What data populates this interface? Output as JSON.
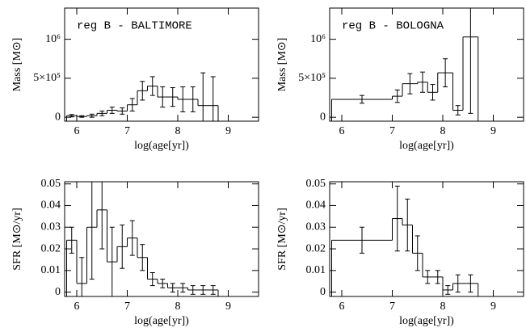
{
  "chart_data": [
    {
      "type": "histogram",
      "title": "reg B - BALTIMORE",
      "xlabel": "log(age[yr])",
      "ylabel": "Mass [M⊙]",
      "bins": [
        5.8,
        6.0,
        6.2,
        6.4,
        6.6,
        6.8,
        7.0,
        7.2,
        7.4,
        7.6,
        7.8,
        8.0,
        8.2,
        8.4,
        8.6,
        8.8
      ],
      "values": [
        20000,
        10000,
        20000,
        50000,
        90000,
        80000,
        160000,
        340000,
        400000,
        260000,
        260000,
        230000,
        230000,
        150000,
        150000
      ],
      "errors": [
        15000,
        10000,
        20000,
        30000,
        40000,
        40000,
        80000,
        120000,
        120000,
        130000,
        120000,
        160000,
        160000,
        420000,
        370000
      ],
      "xlim": [
        5.76,
        9.6
      ],
      "ylim": [
        -50000,
        1400000
      ],
      "xticks": [
        6,
        7,
        8,
        9
      ],
      "yticks": [
        0,
        {
          "value": 500000,
          "label": "5×10⁵"
        },
        {
          "value": 1000000,
          "label": "10⁶"
        }
      ]
    },
    {
      "type": "histogram",
      "title": "reg B - BOLOGNA",
      "xlabel": "log(age[yr])",
      "ylabel": "Mass [M⊙]",
      "bins": [
        5.8,
        7.0,
        7.2,
        7.5,
        7.7,
        7.9,
        8.2,
        8.4,
        8.7
      ],
      "values": [
        230000,
        270000,
        430000,
        450000,
        320000,
        570000,
        90000,
        1030000
      ],
      "errors": [
        50000,
        80000,
        130000,
        130000,
        100000,
        180000,
        60000,
        980000
      ],
      "xlim": [
        5.76,
        9.6
      ],
      "ylim": [
        -50000,
        1400000
      ],
      "xticks": [
        6,
        7,
        8,
        9
      ],
      "yticks": [
        0,
        {
          "value": 500000,
          "label": "5×10⁵"
        },
        {
          "value": 1000000,
          "label": "10⁶"
        }
      ]
    },
    {
      "type": "histogram",
      "xlabel": "log(age[yr])",
      "ylabel": "SFR [M⊙/yr]",
      "bins": [
        5.8,
        6.0,
        6.2,
        6.4,
        6.6,
        6.8,
        7.0,
        7.2,
        7.4,
        7.6,
        7.8,
        8.0,
        8.2,
        8.4,
        8.6,
        8.8
      ],
      "values": [
        0.024,
        0.004,
        0.03,
        0.038,
        0.014,
        0.021,
        0.025,
        0.016,
        0.006,
        0.004,
        0.002,
        0.002,
        0.001,
        0.001,
        0.001
      ],
      "errors": [
        0.006,
        0.012,
        0.024,
        0.018,
        0.016,
        0.01,
        0.008,
        0.006,
        0.003,
        0.002,
        0.002,
        0.002,
        0.002,
        0.002,
        0.002
      ],
      "xlim": [
        5.76,
        9.6
      ],
      "ylim": [
        -0.002,
        0.051
      ],
      "xticks": [
        6,
        7,
        8,
        9
      ],
      "yticks": [
        0,
        0.01,
        0.02,
        0.03,
        0.04,
        0.05
      ]
    },
    {
      "type": "histogram",
      "xlabel": "log(age[yr])",
      "ylabel": "SFR [M⊙/yr]",
      "bins": [
        5.8,
        7.0,
        7.2,
        7.4,
        7.6,
        7.8,
        8.0,
        8.2,
        8.4,
        8.7
      ],
      "values": [
        0.024,
        0.034,
        0.031,
        0.018,
        0.007,
        0.007,
        0.001,
        0.004,
        0.004
      ],
      "errors": [
        0.006,
        0.015,
        0.012,
        0.008,
        0.003,
        0.003,
        0.002,
        0.004,
        0.004
      ],
      "xlim": [
        5.76,
        9.6
      ],
      "ylim": [
        -0.002,
        0.051
      ],
      "xticks": [
        6,
        7,
        8,
        9
      ],
      "yticks": [
        0,
        0.01,
        0.02,
        0.03,
        0.04,
        0.05
      ]
    }
  ]
}
